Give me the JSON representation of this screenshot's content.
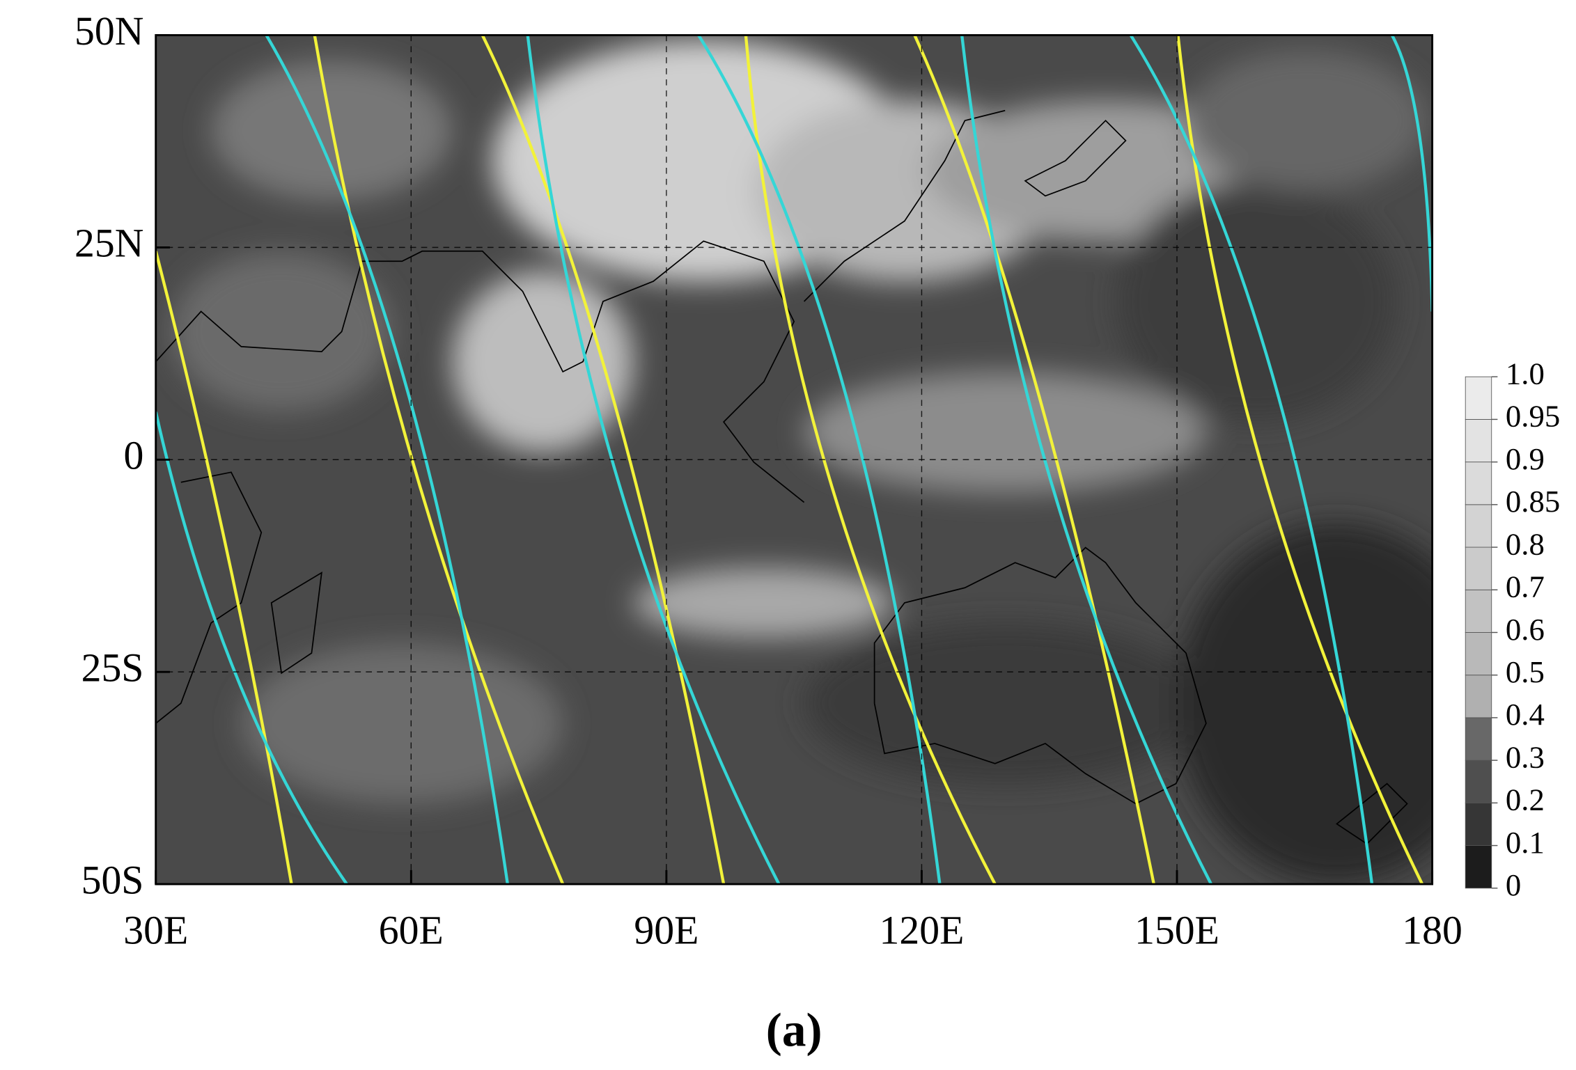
{
  "map": {
    "xlim": [
      30,
      180
    ],
    "ylim": [
      -50,
      50
    ],
    "xticks": [
      {
        "value": 30,
        "label": "30E"
      },
      {
        "value": 60,
        "label": "60E"
      },
      {
        "value": 90,
        "label": "90E"
      },
      {
        "value": 120,
        "label": "120E"
      },
      {
        "value": 150,
        "label": "150E"
      },
      180
    ],
    "yticks": [
      {
        "value": -50,
        "label": "50S"
      },
      {
        "value": -25,
        "label": "25S"
      },
      0,
      {
        "value": 25,
        "label": "25N"
      },
      {
        "value": 50,
        "label": "50N"
      }
    ],
    "grid": true,
    "colorbar": {
      "levels": [
        0,
        0.1,
        0.2,
        0.3,
        0.4,
        0.5,
        0.6,
        0.7,
        0.8,
        0.85,
        0.9,
        0.95,
        {
          "value": 1,
          "label": "1.0"
        }
      ],
      "colors": [
        "#1c1c1c",
        "#363636",
        "#4f4f4f",
        "#686868",
        "#b0b0b0",
        "#b9b9b9",
        "#c2c2c2",
        "#cbcbcb",
        "#d3d3d3",
        "#dbdbdb",
        "#e3e3e3",
        "#ebebeb"
      ]
    },
    "caption": "(a)"
  }
}
